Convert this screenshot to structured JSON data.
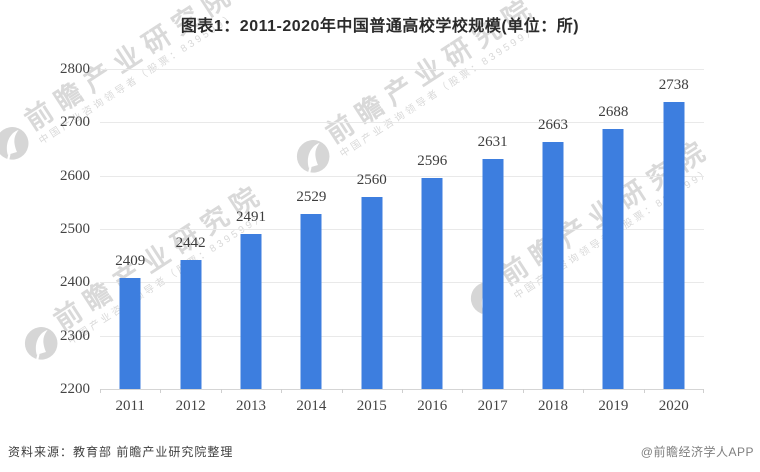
{
  "title": "图表1：2011-2020年中国普通高校学校规模(单位：所)",
  "footer": {
    "source": "资料来源：教育部 前瞻产业研究院整理",
    "credit": "@前瞻经济学人APP"
  },
  "watermark": {
    "text": "前瞻产业研究院",
    "subtext": "中国产业咨询领导者（股票：839599）"
  },
  "colors": {
    "bar": "#3d7edf",
    "grid": "#e9e9e9",
    "axis_line": "#d5d5d5",
    "label_text": "#3d3d3d",
    "watermark": "#d9d9d9"
  },
  "chart_data": {
    "type": "bar",
    "categories": [
      "2011",
      "2012",
      "2013",
      "2014",
      "2015",
      "2016",
      "2017",
      "2018",
      "2019",
      "2020"
    ],
    "values": [
      2409,
      2442,
      2491,
      2529,
      2560,
      2596,
      2631,
      2663,
      2688,
      2738
    ],
    "title": "图表1：2011-2020年中国普通高校学校规模(单位：所)",
    "xlabel": "",
    "ylabel": "",
    "unit": "所",
    "ylim": [
      2200,
      2800
    ],
    "ytick_step": 100,
    "grid": true,
    "legend": false,
    "bar_labels": true
  }
}
